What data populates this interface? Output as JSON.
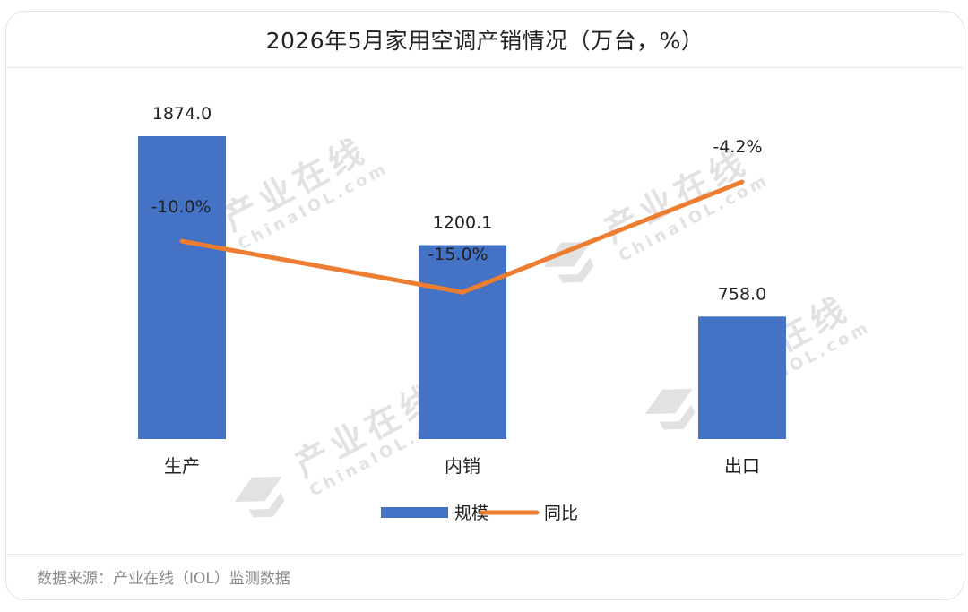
{
  "title": "2026年5月家用空调产销情况（万台，%）",
  "source": "数据来源：产业在线（IOL）监测数据",
  "watermark": {
    "cn": "产业在线",
    "en": "ChinaIOL.com"
  },
  "chart_data": {
    "type": "bar+line",
    "categories": [
      "生产",
      "内销",
      "出口"
    ],
    "series": [
      {
        "name": "规模",
        "type": "bar",
        "values": [
          1874.0,
          1200.1,
          758.0
        ],
        "labels": [
          "1874.0",
          "1200.1",
          "758.0"
        ],
        "color": "#4472c4"
      },
      {
        "name": "同比",
        "type": "line",
        "values": [
          -10.0,
          -15.0,
          -4.2
        ],
        "labels": [
          "-10.0%",
          "-15.0%",
          "-4.2%"
        ],
        "color": "#ed7d31"
      }
    ],
    "legend_position": "bottom",
    "grid": false
  }
}
